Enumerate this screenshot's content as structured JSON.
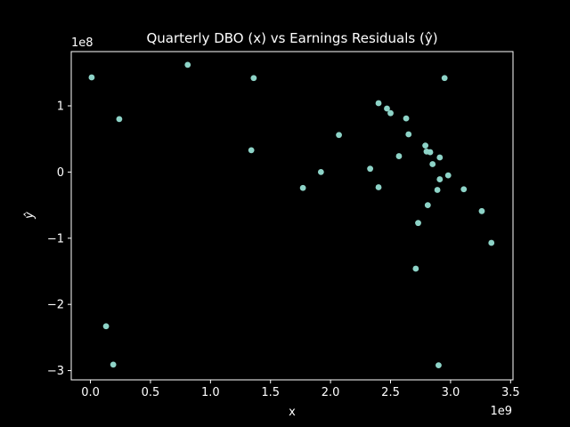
{
  "colors": {
    "background": "#000000",
    "axes": "#ffffff",
    "point": "#8dd3c7"
  },
  "chart_data": {
    "type": "scatter",
    "title": "Quarterly DBO (x) vs Earnings Residuals (ŷ)",
    "xlabel": "x",
    "ylabel": "ŷ",
    "x_offset_text": "1e9",
    "y_offset_text": "1e8",
    "xlim": [
      -0.16,
      3.52
    ],
    "ylim": [
      -3.14,
      1.82
    ],
    "x_ticks": [
      0.0,
      0.5,
      1.0,
      1.5,
      2.0,
      2.5,
      3.0,
      3.5
    ],
    "x_tick_labels": [
      "0.0",
      "0.5",
      "1.0",
      "1.5",
      "2.0",
      "2.5",
      "3.0",
      "3.5"
    ],
    "y_ticks": [
      -3,
      -2,
      -1,
      0,
      1
    ],
    "y_tick_labels": [
      "−3",
      "−2",
      "−1",
      "0",
      "1"
    ],
    "grid": false,
    "legend": "none",
    "x_scale": "×1e9",
    "y_scale": "×1e8",
    "points": [
      {
        "x": 0.01,
        "y": 1.43
      },
      {
        "x": 0.24,
        "y": 0.8
      },
      {
        "x": 0.13,
        "y": -2.33
      },
      {
        "x": 0.19,
        "y": -2.91
      },
      {
        "x": 0.81,
        "y": 1.62
      },
      {
        "x": 1.36,
        "y": 1.42
      },
      {
        "x": 1.34,
        "y": 0.33
      },
      {
        "x": 1.77,
        "y": -0.24
      },
      {
        "x": 1.92,
        "y": 0.0
      },
      {
        "x": 2.07,
        "y": 0.56
      },
      {
        "x": 2.33,
        "y": 0.05
      },
      {
        "x": 2.4,
        "y": 1.04
      },
      {
        "x": 2.4,
        "y": -0.23
      },
      {
        "x": 2.47,
        "y": 0.96
      },
      {
        "x": 2.5,
        "y": 0.89
      },
      {
        "x": 2.57,
        "y": 0.24
      },
      {
        "x": 2.63,
        "y": 0.81
      },
      {
        "x": 2.65,
        "y": 0.57
      },
      {
        "x": 2.71,
        "y": -1.46
      },
      {
        "x": 2.73,
        "y": -0.77
      },
      {
        "x": 2.79,
        "y": 0.4
      },
      {
        "x": 2.8,
        "y": 0.31
      },
      {
        "x": 2.81,
        "y": -0.5
      },
      {
        "x": 2.83,
        "y": 0.3
      },
      {
        "x": 2.85,
        "y": 0.12
      },
      {
        "x": 2.89,
        "y": -0.27
      },
      {
        "x": 2.9,
        "y": -2.92
      },
      {
        "x": 2.91,
        "y": 0.22
      },
      {
        "x": 2.91,
        "y": -0.11
      },
      {
        "x": 2.95,
        "y": 1.42
      },
      {
        "x": 2.98,
        "y": -0.05
      },
      {
        "x": 3.11,
        "y": -0.26
      },
      {
        "x": 3.26,
        "y": -0.59
      },
      {
        "x": 3.34,
        "y": -1.07
      }
    ]
  }
}
